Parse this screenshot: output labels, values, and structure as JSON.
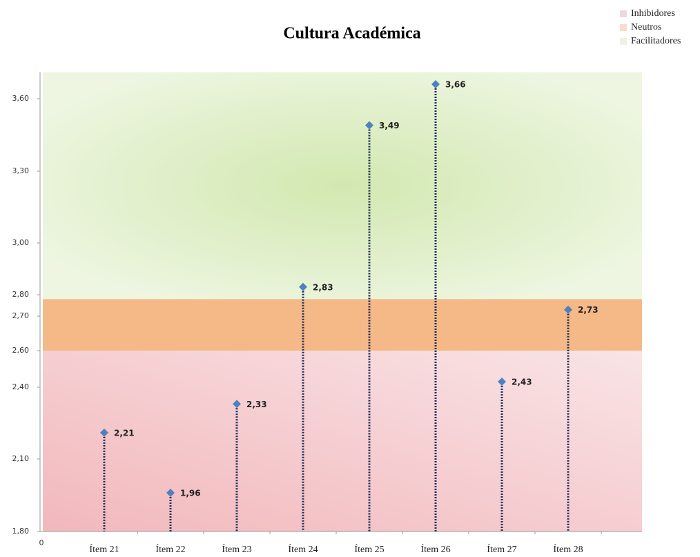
{
  "chart_data": {
    "type": "stem",
    "title": "Cultura Académica",
    "categories": [
      "Ítem 21",
      "Ítem 22",
      "Ítem 23",
      "Ítem 24",
      "Ítem 25",
      "Ítem 26",
      "Ítem 27",
      "Ítem 28"
    ],
    "values": [
      2.21,
      1.96,
      2.33,
      2.83,
      3.49,
      3.66,
      2.43,
      2.73
    ],
    "value_labels": [
      "2,21",
      "1,96",
      "2,33",
      "2,83",
      "3,49",
      "3,66",
      "2,43",
      "2,73"
    ],
    "color": "#4f81bd",
    "stem_color": "#1f2d5a",
    "ylim": [
      1.8,
      3.71
    ],
    "yticks": [
      {
        "value": 1.8,
        "label": "1,80"
      },
      {
        "value": 2.1,
        "label": "2,10"
      },
      {
        "value": 2.4,
        "label": "2,40"
      },
      {
        "value": 2.6,
        "label": "2,60"
      },
      {
        "value": 2.7,
        "label": "2,70"
      },
      {
        "value": 2.8,
        "label": "2,80"
      },
      {
        "value": 3.0,
        "label": "3,00"
      },
      {
        "value": 3.3,
        "label": "3,30"
      },
      {
        "value": 3.6,
        "label": "3,60"
      }
    ],
    "x_origin_label": "0",
    "bands": [
      {
        "name": "Inhibidores",
        "color": "#f2c4c8",
        "legend_color": "#ecd9dc",
        "range": [
          1.8,
          2.6
        ]
      },
      {
        "name": "Neutros",
        "color": "#f5b987",
        "legend_color": "#fadccc",
        "range": [
          2.6,
          2.78
        ]
      },
      {
        "name": "Facilitadores",
        "color": "#dff0c8",
        "legend_color": "#eef2e4",
        "range": [
          2.78,
          3.71
        ]
      }
    ]
  }
}
